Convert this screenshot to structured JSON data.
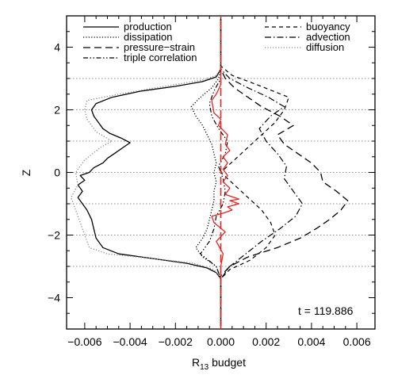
{
  "chart_data": {
    "type": "line",
    "title": "",
    "xlabel": "R",
    "xlabel_sub": "13",
    "xlabel_suffix": " budget",
    "ylabel": "Z",
    "xlim": [
      -0.0068,
      0.0068
    ],
    "ylim": [
      -5.0,
      5.0
    ],
    "xticks": [
      -0.006,
      -0.004,
      -0.002,
      0.0,
      0.002,
      0.004,
      0.006
    ],
    "xtick_labels": [
      "−0.006",
      "−0.004",
      "−0.002",
      "0.000",
      "0.002",
      "0.004",
      "0.006"
    ],
    "yticks": [
      -4,
      -2,
      0,
      2,
      4
    ],
    "ytick_labels": [
      "−4",
      "−2",
      "0",
      "2",
      "4"
    ],
    "grid": "horizontal dotted lines at z = -3, -2, -1, 0, 1, 2, 3",
    "grid_lines_z": [
      -3,
      -2,
      -1,
      0,
      1,
      2,
      3
    ],
    "annotation": "t = 119.886",
    "legend_left": [
      "production",
      "dissipation",
      "pressure−strain",
      "triple correlation"
    ],
    "legend_right": [
      "buoyancy",
      "advection",
      "diffusion"
    ],
    "series": [
      {
        "name": "production",
        "style": "solid",
        "color": "#000000",
        "points": [
          [
            0.0,
            -4.9
          ],
          [
            0.0,
            -3.4
          ],
          [
            -0.0002,
            -3.2
          ],
          [
            -0.0006,
            -3.05
          ],
          [
            -0.0015,
            -2.9
          ],
          [
            -0.003,
            -2.75
          ],
          [
            -0.0045,
            -2.6
          ],
          [
            -0.0052,
            -2.4
          ],
          [
            -0.0055,
            -2.1
          ],
          [
            -0.0056,
            -1.8
          ],
          [
            -0.0057,
            -1.5
          ],
          [
            -0.0059,
            -1.2
          ],
          [
            -0.0061,
            -1.0
          ],
          [
            -0.0063,
            -0.8
          ],
          [
            -0.0061,
            -0.6
          ],
          [
            -0.0063,
            -0.4
          ],
          [
            -0.006,
            -0.25
          ],
          [
            -0.0062,
            -0.1
          ],
          [
            -0.0058,
            0.0
          ],
          [
            -0.0056,
            0.15
          ],
          [
            -0.0052,
            0.3
          ],
          [
            -0.005,
            0.45
          ],
          [
            -0.0047,
            0.6
          ],
          [
            -0.0043,
            0.8
          ],
          [
            -0.004,
            0.95
          ],
          [
            -0.0044,
            1.1
          ],
          [
            -0.0049,
            1.25
          ],
          [
            -0.0052,
            1.4
          ],
          [
            -0.0054,
            1.6
          ],
          [
            -0.0056,
            1.8
          ],
          [
            -0.0057,
            2.0
          ],
          [
            -0.0055,
            2.2
          ],
          [
            -0.0048,
            2.4
          ],
          [
            -0.0035,
            2.6
          ],
          [
            -0.002,
            2.75
          ],
          [
            -0.0008,
            2.9
          ],
          [
            -0.0002,
            3.05
          ],
          [
            0.0,
            3.3
          ],
          [
            0.0,
            4.9
          ]
        ]
      },
      {
        "name": "dissipation",
        "style": "dotted",
        "color": "#000000",
        "points": [
          [
            0.0,
            -4.9
          ],
          [
            0.0,
            -3.4
          ],
          [
            -0.0002,
            -3.0
          ],
          [
            -0.0008,
            -2.7
          ],
          [
            -0.0011,
            -2.4
          ],
          [
            -0.0008,
            -2.1
          ],
          [
            -0.0006,
            -1.8
          ],
          [
            -0.0005,
            -1.5
          ],
          [
            -0.0004,
            -1.2
          ],
          [
            -0.0003,
            -0.9
          ],
          [
            -0.0003,
            -0.6
          ],
          [
            -0.0002,
            -0.3
          ],
          [
            -0.0003,
            0.0
          ],
          [
            -0.0002,
            0.3
          ],
          [
            -0.0003,
            0.6
          ],
          [
            -0.0004,
            0.9
          ],
          [
            -0.0006,
            1.2
          ],
          [
            -0.0008,
            1.5
          ],
          [
            -0.0011,
            1.8
          ],
          [
            -0.0013,
            2.1
          ],
          [
            -0.0009,
            2.4
          ],
          [
            -0.0004,
            2.7
          ],
          [
            -0.0001,
            3.0
          ],
          [
            0.0,
            3.3
          ],
          [
            0.0,
            4.9
          ]
        ]
      },
      {
        "name": "pressure−strain",
        "style": "dashed",
        "color": "#000000",
        "points": [
          [
            0.0,
            -4.9
          ],
          [
            0.0,
            -3.3
          ],
          [
            0.0004,
            -3.0
          ],
          [
            0.0012,
            -2.7
          ],
          [
            0.0025,
            -2.4
          ],
          [
            0.0035,
            -2.1
          ],
          [
            0.0042,
            -1.8
          ],
          [
            0.0048,
            -1.5
          ],
          [
            0.0053,
            -1.2
          ],
          [
            0.0056,
            -0.9
          ],
          [
            0.0051,
            -0.6
          ],
          [
            0.0045,
            -0.3
          ],
          [
            0.0044,
            0.0
          ],
          [
            0.004,
            0.3
          ],
          [
            0.0034,
            0.6
          ],
          [
            0.0028,
            0.9
          ],
          [
            0.0025,
            1.2
          ],
          [
            0.0032,
            1.5
          ],
          [
            0.0026,
            1.8
          ],
          [
            0.0018,
            2.1
          ],
          [
            0.0012,
            2.4
          ],
          [
            0.0006,
            2.7
          ],
          [
            0.0002,
            3.0
          ],
          [
            0.0,
            3.3
          ],
          [
            0.0,
            4.9
          ]
        ]
      },
      {
        "name": "triple correlation",
        "style": "dash-dot-dot",
        "color": "#000000",
        "points": [
          [
            0.0,
            -4.9
          ],
          [
            0.0,
            -3.4
          ],
          [
            -0.0002,
            -3.0
          ],
          [
            -0.0009,
            -2.6
          ],
          [
            -0.0005,
            -2.2
          ],
          [
            -0.0003,
            -1.8
          ],
          [
            -0.0002,
            -1.4
          ],
          [
            0.0001,
            -1.0
          ],
          [
            0.0002,
            -0.6
          ],
          [
            0.0001,
            -0.2
          ],
          [
            -0.0001,
            0.2
          ],
          [
            0.0002,
            0.6
          ],
          [
            0.0003,
            1.0
          ],
          [
            -0.0001,
            1.4
          ],
          [
            -0.0004,
            1.8
          ],
          [
            -0.0005,
            2.2
          ],
          [
            -0.0003,
            2.6
          ],
          [
            0.0,
            3.0
          ],
          [
            0.0,
            4.9
          ]
        ]
      },
      {
        "name": "buoyancy",
        "style": "short-dashed",
        "color": "#000000",
        "points": [
          [
            0.0,
            -4.9
          ],
          [
            0.0,
            -3.4
          ],
          [
            0.0004,
            -3.1
          ],
          [
            0.0013,
            -2.8
          ],
          [
            0.002,
            -2.4
          ],
          [
            0.0024,
            -2.0
          ],
          [
            0.0022,
            -1.6
          ],
          [
            0.0018,
            -1.2
          ],
          [
            0.0012,
            -0.8
          ],
          [
            0.0006,
            -0.4
          ],
          [
            0.0,
            0.0
          ],
          [
            0.0006,
            0.4
          ],
          [
            0.0012,
            0.8
          ],
          [
            0.0018,
            1.2
          ],
          [
            0.0024,
            1.6
          ],
          [
            0.0028,
            2.0
          ],
          [
            0.003,
            2.4
          ],
          [
            0.0016,
            2.8
          ],
          [
            0.0005,
            3.1
          ],
          [
            0.0,
            3.4
          ],
          [
            0.0,
            4.9
          ]
        ]
      },
      {
        "name": "advection",
        "style": "dash-dot",
        "color": "#000000",
        "points": [
          [
            0.0,
            -4.9
          ],
          [
            0.0,
            -3.4
          ],
          [
            0.0004,
            -3.0
          ],
          [
            0.0011,
            -2.6
          ],
          [
            0.0018,
            -2.2
          ],
          [
            0.0026,
            -1.8
          ],
          [
            0.0033,
            -1.4
          ],
          [
            0.0036,
            -1.0
          ],
          [
            0.0032,
            -0.6
          ],
          [
            0.0028,
            -0.2
          ],
          [
            0.0029,
            0.2
          ],
          [
            0.0025,
            0.6
          ],
          [
            0.002,
            1.0
          ],
          [
            0.0017,
            1.4
          ],
          [
            0.0022,
            1.8
          ],
          [
            0.0028,
            2.1
          ],
          [
            0.0021,
            2.4
          ],
          [
            0.0012,
            2.7
          ],
          [
            0.0004,
            3.0
          ],
          [
            0.0,
            3.3
          ],
          [
            0.0,
            4.9
          ]
        ]
      },
      {
        "name": "diffusion",
        "style": "dotted",
        "color": "#8a8a8a",
        "points": [
          [
            0.0,
            -4.9
          ],
          [
            0.0,
            -3.4
          ],
          [
            -0.0003,
            -3.1
          ],
          [
            -0.0012,
            -2.9
          ],
          [
            -0.003,
            -2.75
          ],
          [
            -0.005,
            -2.6
          ],
          [
            -0.0058,
            -2.4
          ],
          [
            -0.006,
            -2.0
          ],
          [
            -0.0062,
            -1.6
          ],
          [
            -0.0064,
            -1.2
          ],
          [
            -0.0066,
            -0.8
          ],
          [
            -0.0063,
            -0.4
          ],
          [
            -0.0064,
            0.0
          ],
          [
            -0.006,
            0.4
          ],
          [
            -0.0053,
            0.8
          ],
          [
            -0.0048,
            1.0
          ],
          [
            -0.0055,
            1.3
          ],
          [
            -0.0059,
            1.7
          ],
          [
            -0.006,
            2.0
          ],
          [
            -0.0059,
            2.3
          ],
          [
            -0.0045,
            2.5
          ],
          [
            -0.0025,
            2.75
          ],
          [
            -0.0008,
            2.95
          ],
          [
            -0.0002,
            3.1
          ],
          [
            0.0,
            3.3
          ],
          [
            0.0,
            4.9
          ]
        ]
      },
      {
        "name": "",
        "style": "solid",
        "color": "#e8241f",
        "points": [
          [
            0.0,
            -3.4
          ],
          [
            0.0,
            -3.0
          ],
          [
            0.0001,
            -2.6
          ],
          [
            -0.0002,
            -2.2
          ],
          [
            0.0002,
            -1.9
          ],
          [
            -0.0003,
            -1.6
          ],
          [
            -0.0004,
            -1.4
          ],
          [
            0.0001,
            -1.3
          ],
          [
            0.0005,
            -1.2
          ],
          [
            0.0003,
            -1.1
          ],
          [
            0.0008,
            -1.0
          ],
          [
            0.0004,
            -0.9
          ],
          [
            0.0008,
            -0.85
          ],
          [
            0.0002,
            -0.7
          ],
          [
            0.0004,
            -0.5
          ],
          [
            0.0001,
            -0.3
          ],
          [
            0.0003,
            -0.1
          ],
          [
            0.0001,
            0.1
          ],
          [
            0.0003,
            0.3
          ],
          [
            0.0001,
            0.5
          ],
          [
            0.0004,
            0.7
          ],
          [
            0.0002,
            0.9
          ],
          [
            0.0003,
            1.2
          ],
          [
            -0.0001,
            1.5
          ],
          [
            0.0,
            1.7
          ],
          [
            -0.0003,
            1.9
          ],
          [
            -0.0004,
            2.3
          ],
          [
            -0.0002,
            2.5
          ],
          [
            0.0,
            2.8
          ],
          [
            0.0,
            3.2
          ]
        ]
      },
      {
        "name": "",
        "style": "long-dashed",
        "color": "#e8241f",
        "points": [
          [
            0.0,
            -5.0
          ],
          [
            0.0,
            5.0
          ]
        ]
      }
    ]
  }
}
